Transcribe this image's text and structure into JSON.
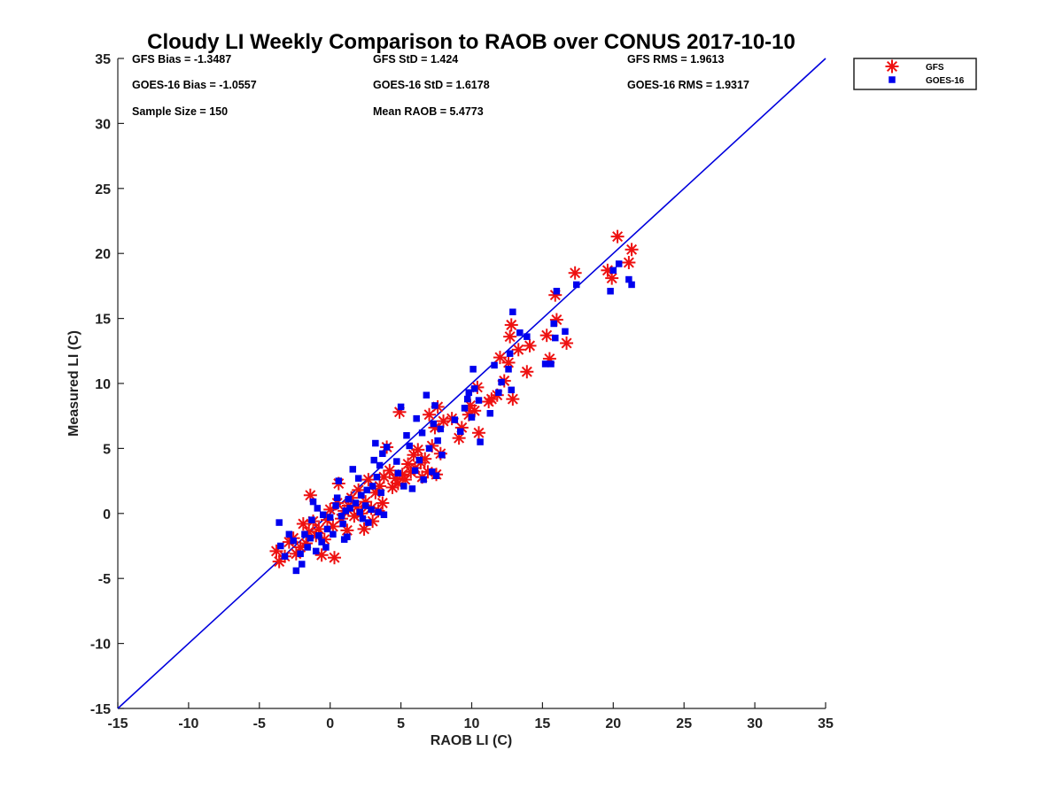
{
  "chart_data": {
    "type": "scatter",
    "title": "Cloudy LI Weekly Comparison to RAOB over CONUS 2017-10-10",
    "xlabel": "RAOB LI (C)",
    "ylabel": "Measured LI (C)",
    "xlim": [
      -15,
      35
    ],
    "ylim": [
      -15,
      35
    ],
    "xticks": [
      "-15",
      "-10",
      "-5",
      "0",
      "5",
      "10",
      "15",
      "20",
      "25",
      "30",
      "35"
    ],
    "yticks": [
      "-15",
      "-10",
      "-5",
      "0",
      "5",
      "10",
      "15",
      "20",
      "25",
      "30",
      "35"
    ],
    "grid": false,
    "legend_position": "top-right, outside plot area",
    "reference_line": {
      "type": "one-to-one",
      "from": [
        -15,
        -15
      ],
      "to": [
        35,
        35
      ],
      "color": "#0000dd"
    },
    "stats": [
      [
        "GFS Bias = -1.3487",
        "GFS StD = 1.424",
        "GFS RMS = 1.9613"
      ],
      [
        "GOES-16 Bias = -1.0557",
        "GOES-16 StD = 1.6178",
        "GOES-16 RMS = 1.9317"
      ],
      [
        "Sample Size = 150",
        "Mean RAOB = 5.4773",
        ""
      ]
    ],
    "series": [
      {
        "name": "GFS",
        "marker": "asterisk",
        "color": "#ee1111",
        "points": [
          [
            -3.8,
            -2.9
          ],
          [
            -3.6,
            -3.7
          ],
          [
            -3.2,
            -3.3
          ],
          [
            -2.9,
            -2.2
          ],
          [
            -2.6,
            -1.9
          ],
          [
            -2.4,
            -3.1
          ],
          [
            -2.1,
            -2.6
          ],
          [
            -1.9,
            -0.8
          ],
          [
            -1.7,
            -2.3
          ],
          [
            -1.5,
            -1.4
          ],
          [
            -1.4,
            1.4
          ],
          [
            -1.2,
            -0.6
          ],
          [
            -1.0,
            -1.7
          ],
          [
            -0.8,
            -1.2
          ],
          [
            -0.6,
            -3.2
          ],
          [
            -0.4,
            -2.0
          ],
          [
            -0.2,
            -0.5
          ],
          [
            0.0,
            0.3
          ],
          [
            0.2,
            -1.0
          ],
          [
            0.3,
            -3.4
          ],
          [
            0.5,
            0.8
          ],
          [
            0.6,
            2.3
          ],
          [
            0.8,
            -0.4
          ],
          [
            1.0,
            0.2
          ],
          [
            1.2,
            -1.3
          ],
          [
            1.3,
            0.6
          ],
          [
            1.5,
            1.2
          ],
          [
            1.7,
            -0.2
          ],
          [
            1.9,
            0.5
          ],
          [
            2.0,
            1.8
          ],
          [
            2.2,
            0.0
          ],
          [
            2.4,
            -1.2
          ],
          [
            2.5,
            0.9
          ],
          [
            2.7,
            2.6
          ],
          [
            2.9,
            0.4
          ],
          [
            3.0,
            -0.6
          ],
          [
            3.2,
            1.6
          ],
          [
            3.4,
            0.2
          ],
          [
            3.5,
            2.1
          ],
          [
            3.7,
            0.8
          ],
          [
            3.8,
            2.8
          ],
          [
            4.0,
            5.1
          ],
          [
            4.2,
            3.3
          ],
          [
            4.4,
            2.0
          ],
          [
            4.6,
            2.7
          ],
          [
            4.8,
            2.3
          ],
          [
            4.9,
            7.8
          ],
          [
            5.1,
            3.0
          ],
          [
            5.3,
            2.6
          ],
          [
            5.5,
            3.8
          ],
          [
            5.7,
            3.2
          ],
          [
            5.9,
            4.5
          ],
          [
            6.0,
            3.5
          ],
          [
            6.2,
            4.9
          ],
          [
            6.4,
            3.9
          ],
          [
            6.5,
            2.8
          ],
          [
            6.7,
            4.2
          ],
          [
            6.9,
            3.2
          ],
          [
            7.0,
            7.6
          ],
          [
            7.2,
            5.2
          ],
          [
            7.4,
            6.6
          ],
          [
            7.5,
            3.0
          ],
          [
            7.6,
            8.2
          ],
          [
            7.8,
            4.6
          ],
          [
            8.0,
            7.1
          ],
          [
            8.6,
            7.3
          ],
          [
            9.1,
            5.8
          ],
          [
            9.3,
            6.6
          ],
          [
            9.8,
            7.6
          ],
          [
            9.9,
            8.3
          ],
          [
            10.2,
            7.9
          ],
          [
            10.4,
            9.7
          ],
          [
            10.5,
            6.2
          ],
          [
            11.2,
            8.6
          ],
          [
            11.4,
            8.8
          ],
          [
            11.8,
            9.1
          ],
          [
            12.0,
            12.0
          ],
          [
            12.3,
            10.2
          ],
          [
            12.6,
            11.6
          ],
          [
            12.7,
            13.6
          ],
          [
            12.8,
            14.5
          ],
          [
            12.9,
            8.8
          ],
          [
            13.3,
            12.6
          ],
          [
            13.9,
            10.9
          ],
          [
            14.1,
            12.9
          ],
          [
            15.3,
            13.7
          ],
          [
            15.5,
            11.9
          ],
          [
            15.9,
            16.8
          ],
          [
            16.0,
            14.9
          ],
          [
            16.7,
            13.1
          ],
          [
            17.3,
            18.5
          ],
          [
            19.6,
            18.7
          ],
          [
            19.9,
            18.1
          ],
          [
            20.3,
            21.3
          ],
          [
            21.1,
            19.3
          ],
          [
            21.3,
            20.3
          ]
        ]
      },
      {
        "name": "GOES-16",
        "marker": "square",
        "color": "#0000ee",
        "points": [
          [
            -3.6,
            -0.7
          ],
          [
            -3.5,
            -2.5
          ],
          [
            -3.2,
            -3.3
          ],
          [
            -2.9,
            -1.6
          ],
          [
            -2.6,
            -2.1
          ],
          [
            -2.4,
            -4.4
          ],
          [
            -2.1,
            -3.1
          ],
          [
            -2.0,
            -3.9
          ],
          [
            -1.8,
            -1.6
          ],
          [
            -1.6,
            -2.6
          ],
          [
            -1.4,
            -1.9
          ],
          [
            -1.3,
            -0.5
          ],
          [
            -1.2,
            0.9
          ],
          [
            -1.0,
            -2.9
          ],
          [
            -0.9,
            0.4
          ],
          [
            -0.8,
            -1.7
          ],
          [
            -0.6,
            -2.2
          ],
          [
            -0.5,
            -0.1
          ],
          [
            -0.3,
            -2.6
          ],
          [
            -0.2,
            -1.2
          ],
          [
            0.0,
            -0.3
          ],
          [
            0.2,
            -1.6
          ],
          [
            0.4,
            0.6
          ],
          [
            0.5,
            1.2
          ],
          [
            0.6,
            2.5
          ],
          [
            0.8,
            -0.2
          ],
          [
            0.9,
            -0.8
          ],
          [
            1.0,
            -2.0
          ],
          [
            1.1,
            0.2
          ],
          [
            1.2,
            -1.8
          ],
          [
            1.3,
            1.1
          ],
          [
            1.4,
            0.4
          ],
          [
            1.6,
            3.4
          ],
          [
            1.8,
            0.8
          ],
          [
            2.0,
            2.7
          ],
          [
            2.1,
            0.1
          ],
          [
            2.2,
            1.4
          ],
          [
            2.3,
            -0.4
          ],
          [
            2.5,
            0.6
          ],
          [
            2.6,
            1.8
          ],
          [
            2.7,
            -0.7
          ],
          [
            2.9,
            0.3
          ],
          [
            3.0,
            2.1
          ],
          [
            3.1,
            4.1
          ],
          [
            3.2,
            5.4
          ],
          [
            3.3,
            2.8
          ],
          [
            3.4,
            0.1
          ],
          [
            3.5,
            3.7
          ],
          [
            3.6,
            1.6
          ],
          [
            3.7,
            4.6
          ],
          [
            3.8,
            -0.1
          ],
          [
            4.0,
            5.1
          ],
          [
            4.7,
            4.0
          ],
          [
            4.8,
            3.1
          ],
          [
            5.0,
            8.2
          ],
          [
            5.2,
            2.1
          ],
          [
            5.4,
            6.0
          ],
          [
            5.6,
            5.2
          ],
          [
            5.8,
            1.9
          ],
          [
            6.0,
            3.3
          ],
          [
            6.1,
            7.3
          ],
          [
            6.3,
            4.1
          ],
          [
            6.5,
            6.2
          ],
          [
            6.6,
            2.6
          ],
          [
            6.8,
            9.1
          ],
          [
            7.0,
            5.0
          ],
          [
            7.2,
            3.2
          ],
          [
            7.3,
            6.9
          ],
          [
            7.4,
            8.3
          ],
          [
            7.5,
            2.9
          ],
          [
            7.6,
            5.6
          ],
          [
            7.8,
            6.5
          ],
          [
            7.9,
            4.5
          ],
          [
            8.8,
            7.2
          ],
          [
            9.2,
            6.3
          ],
          [
            9.5,
            8.1
          ],
          [
            9.7,
            8.8
          ],
          [
            9.8,
            9.3
          ],
          [
            10.0,
            7.4
          ],
          [
            10.1,
            11.1
          ],
          [
            10.2,
            9.6
          ],
          [
            10.5,
            8.7
          ],
          [
            10.6,
            5.5
          ],
          [
            11.3,
            7.7
          ],
          [
            11.6,
            11.4
          ],
          [
            11.9,
            9.3
          ],
          [
            12.1,
            10.1
          ],
          [
            12.6,
            11.1
          ],
          [
            12.7,
            12.3
          ],
          [
            12.8,
            9.5
          ],
          [
            12.9,
            15.5
          ],
          [
            13.4,
            13.9
          ],
          [
            13.9,
            13.6
          ],
          [
            15.2,
            11.5
          ],
          [
            15.6,
            11.5
          ],
          [
            15.8,
            14.6
          ],
          [
            15.9,
            13.5
          ],
          [
            16.0,
            17.1
          ],
          [
            16.6,
            14.0
          ],
          [
            17.4,
            17.6
          ],
          [
            19.8,
            17.1
          ],
          [
            20.0,
            18.7
          ],
          [
            20.4,
            19.2
          ],
          [
            21.1,
            18.0
          ],
          [
            21.3,
            17.6
          ]
        ]
      }
    ]
  }
}
